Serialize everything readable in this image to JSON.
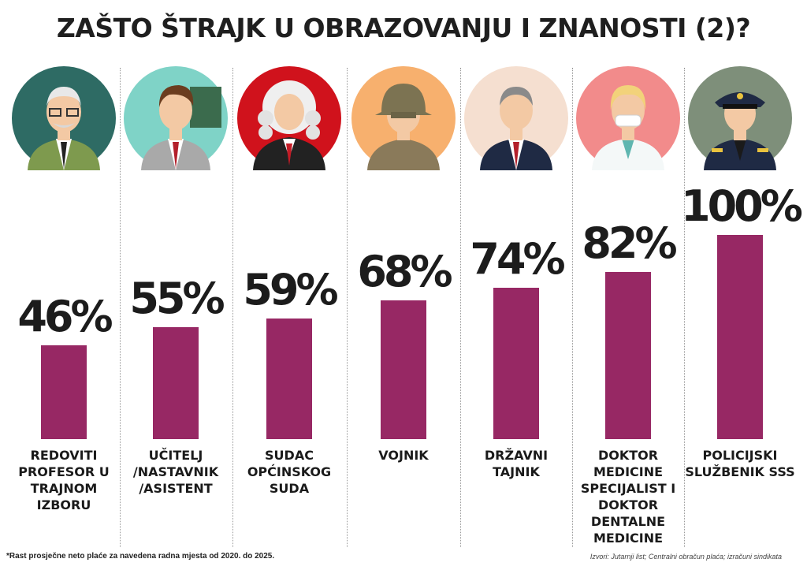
{
  "title": "ZAŠTO ŠTRAJK U OBRAZOVANJU I ZNANOSTI (2)?",
  "footnote": "*Rast prosječne neto plaće za navedena radna mjesta od 2020. do 2025.",
  "source": "Izvori: Jutarnji list; Centralni obračun plaća; izračuni sindikata",
  "colors": {
    "bar": "#972864",
    "text": "#1a1a1a"
  },
  "chart_data": {
    "type": "bar",
    "title": "ZAŠTO ŠTRAJK U OBRAZOVANJU I ZNANOSTI (2)?",
    "unit": "%",
    "ylim": [
      0,
      100
    ],
    "grid": false,
    "categories": [
      "REDOVITI PROFESOR U TRAJNOM IZBORU",
      "UČITELJ /NASTAVNIK /ASISTENT",
      "SUDAC OPĆINSKOG SUDA",
      "VOJNIK",
      "DRŽAVNI TAJNIK",
      "DOKTOR MEDICINE SPECIJALIST I DOKTOR DENTALNE MEDICINE",
      "POLICIJSKI SLUŽBENIK SSS"
    ],
    "values": [
      46,
      55,
      59,
      68,
      74,
      82,
      100
    ],
    "value_labels": [
      "46%",
      "55%",
      "59%",
      "68%",
      "74%",
      "82%",
      "100%"
    ],
    "icons": [
      "professor-avatar-icon",
      "teacher-avatar-icon",
      "judge-avatar-icon",
      "soldier-avatar-icon",
      "state-secretary-avatar-icon",
      "doctor-avatar-icon",
      "police-officer-avatar-icon"
    ],
    "icon_backgrounds": [
      "#2e6b64",
      "#7fd3c7",
      "#d0121c",
      "#f7b06e",
      "#f5dfd0",
      "#f28b8b",
      "#7e8f7a"
    ]
  }
}
